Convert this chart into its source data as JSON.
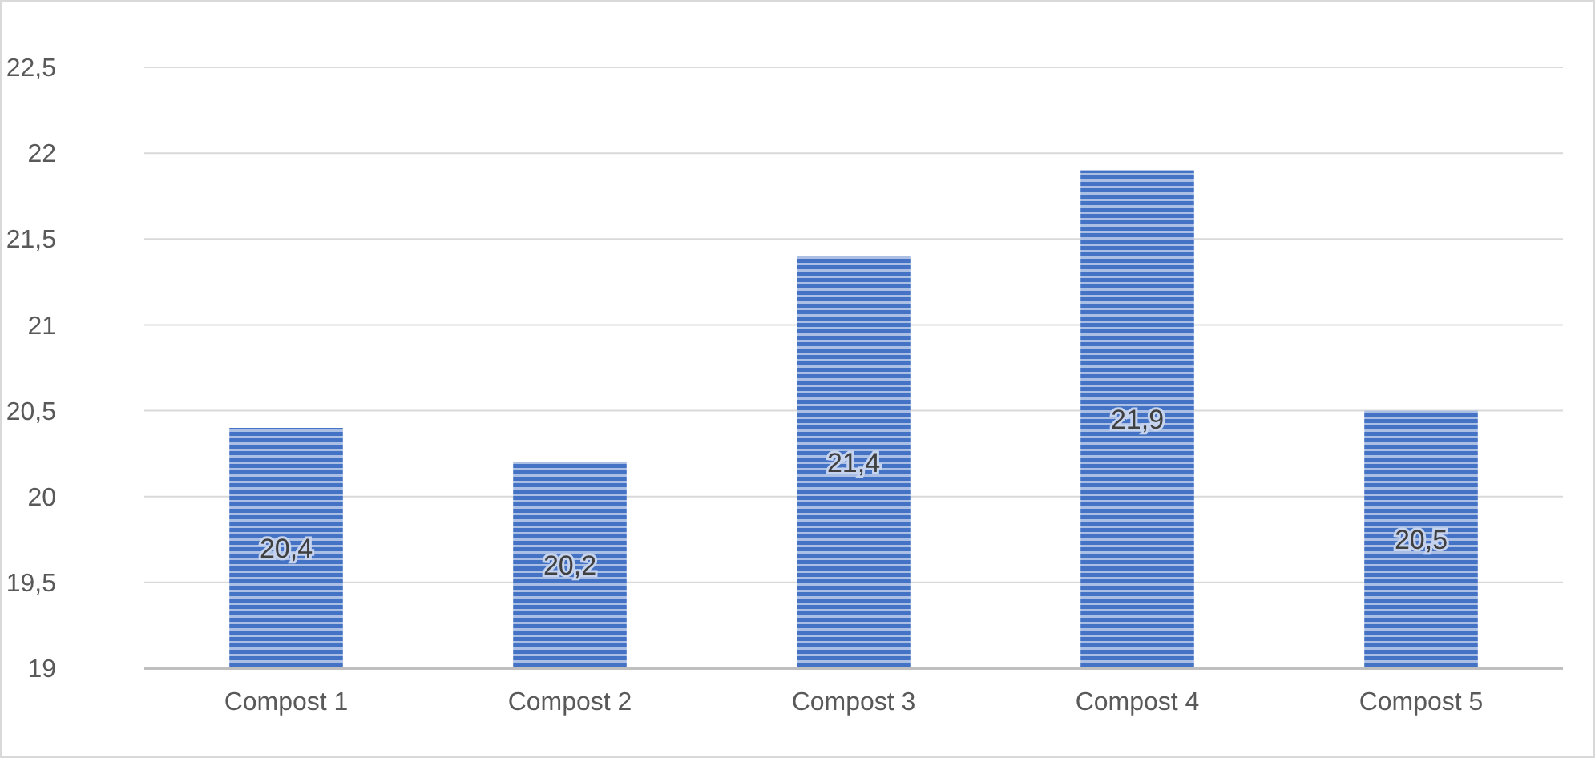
{
  "chart_data": {
    "type": "bar",
    "categories": [
      "Compost 1",
      "Compost 2",
      "Compost 3",
      "Compost 4",
      "Compost 5"
    ],
    "values": [
      20.4,
      20.2,
      21.4,
      21.9,
      20.5
    ],
    "value_labels": [
      "20,4",
      "20,2",
      "21,4",
      "21,9",
      "20,5"
    ],
    "color": "#4472c4",
    "ylim": [
      19,
      22.5
    ],
    "yticks": [
      19,
      {
        "value": 19.5,
        "label": "19,5"
      },
      20,
      {
        "value": 20.5,
        "label": "20,5"
      },
      21,
      {
        "value": 21.5,
        "label": "21,5"
      },
      22,
      {
        "value": 22.5,
        "label": "22,5"
      }
    ],
    "grid": "y"
  }
}
